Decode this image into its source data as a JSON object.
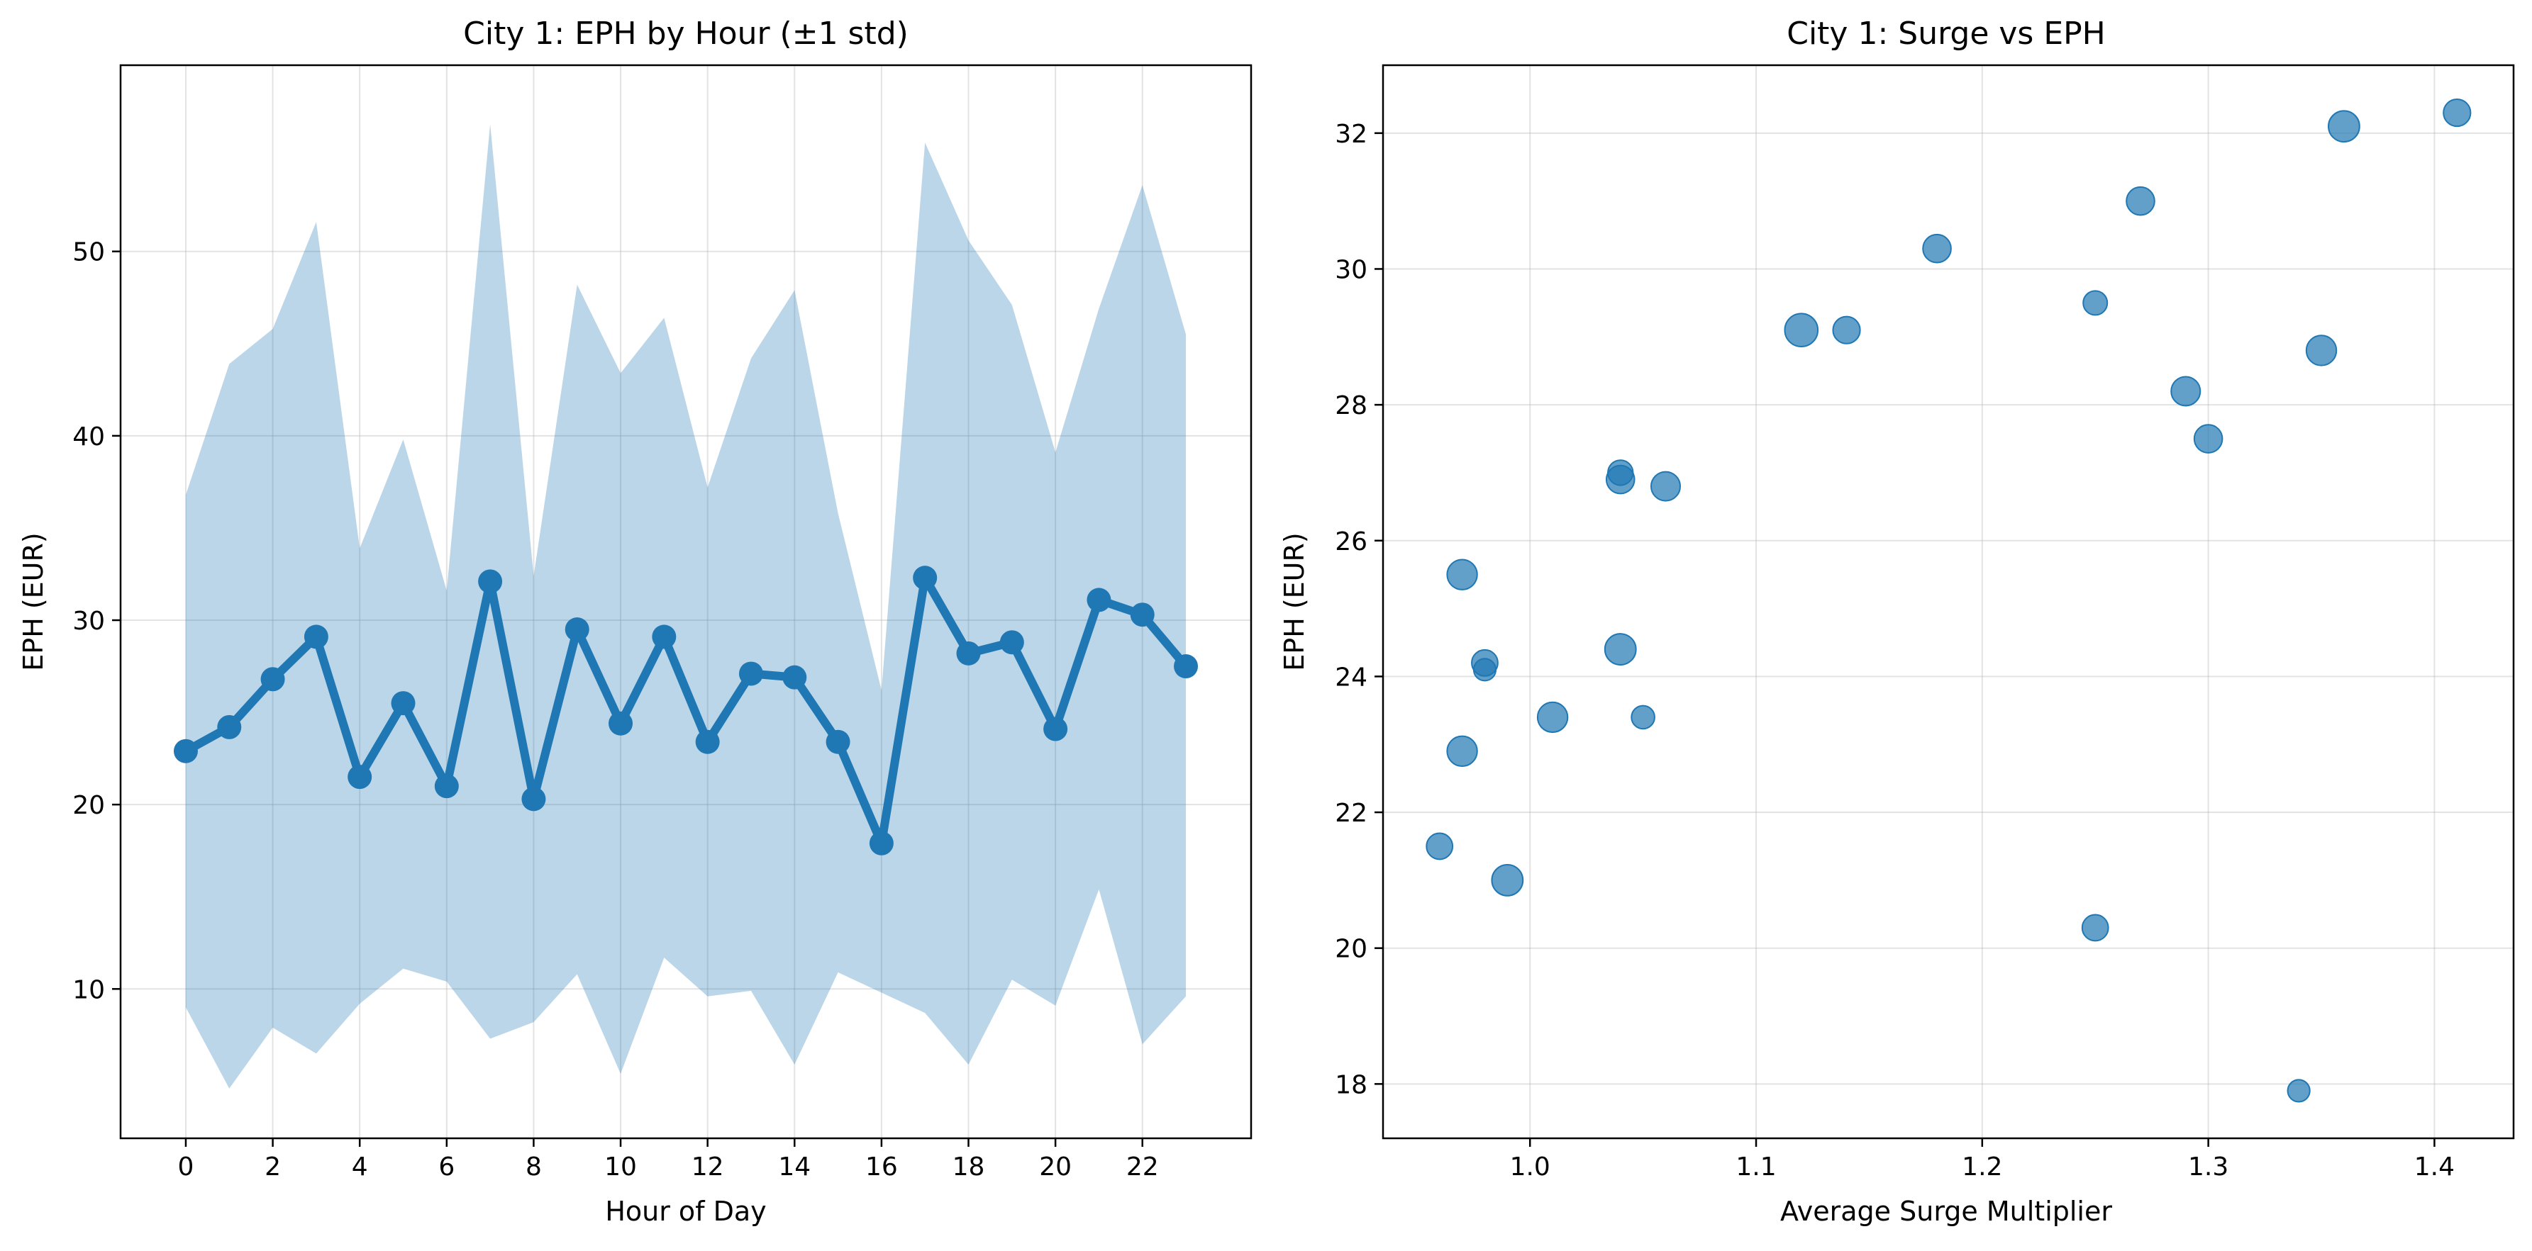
{
  "chart_data": [
    {
      "type": "line",
      "title": "City 1: EPH by Hour (±1 std)",
      "xlabel": "Hour of Day",
      "ylabel": "EPH (EUR)",
      "xlim": [
        -1.5,
        24.5
      ],
      "ylim": [
        1.9,
        60.1
      ],
      "xticks": [
        0,
        2,
        4,
        6,
        8,
        10,
        12,
        14,
        16,
        18,
        20,
        22
      ],
      "yticks": [
        10,
        20,
        30,
        40,
        50
      ],
      "grid": true,
      "color": "#1f77b4",
      "band_color": "#1f77b4",
      "x": [
        0,
        1,
        2,
        3,
        4,
        5,
        6,
        7,
        8,
        9,
        10,
        11,
        12,
        13,
        14,
        15,
        16,
        17,
        18,
        19,
        20,
        21,
        22,
        23
      ],
      "series": [
        {
          "values": [
            22.9,
            24.2,
            26.8,
            29.1,
            21.5,
            25.5,
            21.0,
            32.1,
            20.3,
            29.5,
            24.4,
            29.1,
            23.4,
            27.1,
            26.9,
            23.4,
            17.9,
            32.3,
            28.2,
            28.8,
            24.1,
            31.1,
            30.3,
            27.5
          ],
          "upper": [
            36.8,
            43.9,
            45.8,
            51.6,
            33.9,
            39.8,
            31.6,
            56.9,
            32.4,
            48.2,
            43.4,
            46.4,
            37.2,
            44.2,
            47.9,
            35.8,
            26.2,
            55.9,
            50.6,
            47.1,
            39.1,
            46.9,
            53.6,
            45.5
          ],
          "lower": [
            9.0,
            4.6,
            7.9,
            6.5,
            9.2,
            11.1,
            10.4,
            7.3,
            8.2,
            10.8,
            5.4,
            11.7,
            9.6,
            9.9,
            5.9,
            10.9,
            9.8,
            8.7,
            5.9,
            10.5,
            9.1,
            15.4,
            7.0,
            9.6
          ]
        }
      ]
    },
    {
      "type": "scatter",
      "title": "City 1: Surge vs EPH",
      "xlabel": "Average Surge Multiplier",
      "ylabel": "EPH (EUR)",
      "xlim": [
        0.935,
        1.435
      ],
      "ylim": [
        17.2,
        33.0
      ],
      "xticks": [
        "1.0",
        "1.1",
        "1.2",
        "1.3",
        "1.4"
      ],
      "yticks": [
        18,
        20,
        22,
        24,
        26,
        28,
        30,
        32
      ],
      "grid": true,
      "color": "#1f77b4",
      "points": [
        {
          "x": 0.96,
          "y": 21.5,
          "s": 0.6
        },
        {
          "x": 0.97,
          "y": 25.5,
          "s": 0.8
        },
        {
          "x": 0.97,
          "y": 22.9,
          "s": 0.8
        },
        {
          "x": 0.98,
          "y": 24.2,
          "s": 0.6
        },
        {
          "x": 0.98,
          "y": 24.1,
          "s": 0.4
        },
        {
          "x": 0.99,
          "y": 21.0,
          "s": 0.85
        },
        {
          "x": 1.01,
          "y": 23.4,
          "s": 0.8
        },
        {
          "x": 1.04,
          "y": 27.0,
          "s": 0.55
        },
        {
          "x": 1.04,
          "y": 26.9,
          "s": 0.7
        },
        {
          "x": 1.04,
          "y": 24.4,
          "s": 0.85
        },
        {
          "x": 1.05,
          "y": 23.4,
          "s": 0.45
        },
        {
          "x": 1.06,
          "y": 26.8,
          "s": 0.75
        },
        {
          "x": 1.12,
          "y": 29.1,
          "s": 0.95
        },
        {
          "x": 1.14,
          "y": 29.1,
          "s": 0.65
        },
        {
          "x": 1.18,
          "y": 30.3,
          "s": 0.7
        },
        {
          "x": 1.25,
          "y": 29.5,
          "s": 0.5
        },
        {
          "x": 1.25,
          "y": 20.3,
          "s": 0.6
        },
        {
          "x": 1.27,
          "y": 31.0,
          "s": 0.7
        },
        {
          "x": 1.29,
          "y": 28.2,
          "s": 0.75
        },
        {
          "x": 1.3,
          "y": 27.5,
          "s": 0.7
        },
        {
          "x": 1.34,
          "y": 17.9,
          "s": 0.4
        },
        {
          "x": 1.35,
          "y": 28.8,
          "s": 0.8
        },
        {
          "x": 1.36,
          "y": 32.1,
          "s": 0.85
        },
        {
          "x": 1.41,
          "y": 32.3,
          "s": 0.65
        }
      ]
    }
  ]
}
